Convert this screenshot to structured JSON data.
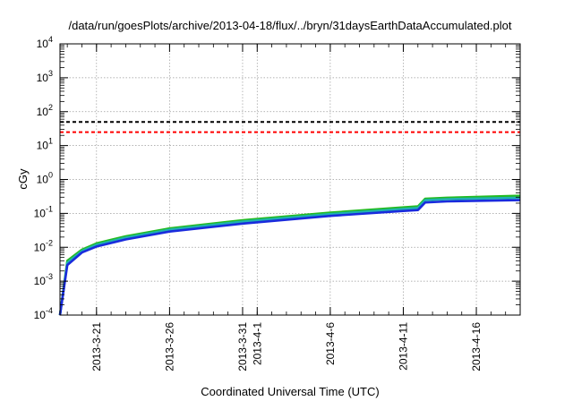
{
  "chart_data": {
    "type": "line",
    "title": "/data/run/goesPlots/archive/2013-04-18/flux/../bryn/31daysEarthDataAccumulated.plot",
    "xlabel": "Coordinated Universal Time (UTC)",
    "ylabel": "cGy",
    "yscale": "log",
    "ylim": [
      0.0001,
      10000
    ],
    "xlim": [
      "2013-03-18 12:00",
      "2013-04-19"
    ],
    "y_ticks": [
      {
        "base": "10",
        "exp": "-4",
        "value": 0.0001
      },
      {
        "base": "10",
        "exp": "-3",
        "value": 0.001
      },
      {
        "base": "10",
        "exp": "-2",
        "value": 0.01
      },
      {
        "base": "10",
        "exp": "-1",
        "value": 0.1
      },
      {
        "base": "10",
        "exp": "0",
        "value": 1
      },
      {
        "base": "10",
        "exp": "1",
        "value": 10
      },
      {
        "base": "10",
        "exp": "2",
        "value": 100
      },
      {
        "base": "10",
        "exp": "3",
        "value": 1000
      },
      {
        "base": "10",
        "exp": "4",
        "value": 10000
      }
    ],
    "x_ticks": [
      {
        "date": "2013-03-21",
        "labels": [
          "2013-3-21"
        ]
      },
      {
        "date": "2013-03-26",
        "labels": [
          "2013-3-26"
        ]
      },
      {
        "date": "2013-03-31",
        "labels": [
          "2013-3-31"
        ]
      },
      {
        "date": "2013-04-01",
        "labels": [
          "2013-4-1"
        ]
      },
      {
        "date": "2013-04-06",
        "labels": [
          "2013-4-6"
        ]
      },
      {
        "date": "2013-04-11",
        "labels": [
          "2013-4-11"
        ]
      },
      {
        "date": "2013-04-16",
        "labels": [
          "2013-4-16"
        ]
      }
    ],
    "grid": true,
    "series": [
      {
        "color": "#000000",
        "style": "dashed",
        "x": [
          "2013-03-18 12:00",
          "2013-04-19"
        ],
        "y": [
          50,
          50
        ]
      },
      {
        "color": "#ff0000",
        "style": "dashed",
        "x": [
          "2013-03-18 12:00",
          "2013-04-19"
        ],
        "y": [
          25,
          25
        ]
      },
      {
        "color": "#22bb22",
        "style": "solid",
        "x": [
          "2013-03-18 12:00",
          "2013-03-19",
          "2013-03-20",
          "2013-03-21",
          "2013-03-23",
          "2013-03-26",
          "2013-03-31",
          "2013-04-06",
          "2013-04-11",
          "2013-04-12",
          "2013-04-12 12:00",
          "2013-04-14",
          "2013-04-19"
        ],
        "y": [
          0.0001,
          0.004,
          0.0085,
          0.013,
          0.021,
          0.036,
          0.063,
          0.105,
          0.15,
          0.16,
          0.27,
          0.29,
          0.33
        ]
      },
      {
        "color": "#1fb0b0",
        "style": "solid",
        "x": [
          "2013-03-18 12:00",
          "2013-03-19",
          "2013-03-20",
          "2013-03-21",
          "2013-03-23",
          "2013-03-26",
          "2013-03-31",
          "2013-04-06",
          "2013-04-11",
          "2013-04-12",
          "2013-04-12 12:00",
          "2013-04-14",
          "2013-04-19"
        ],
        "y": [
          0.0001,
          0.0035,
          0.0077,
          0.0118,
          0.0192,
          0.033,
          0.057,
          0.095,
          0.135,
          0.145,
          0.245,
          0.262,
          0.29
        ]
      },
      {
        "color": "#1a2bdd",
        "style": "solid",
        "x": [
          "2013-03-18 12:00",
          "2013-03-19",
          "2013-03-20",
          "2013-03-21",
          "2013-03-23",
          "2013-03-26",
          "2013-03-31",
          "2013-04-06",
          "2013-04-11",
          "2013-04-12",
          "2013-04-12 12:00",
          "2013-04-14",
          "2013-04-19"
        ],
        "y": [
          0.0001,
          0.003,
          0.007,
          0.0105,
          0.017,
          0.029,
          0.05,
          0.084,
          0.118,
          0.125,
          0.21,
          0.225,
          0.245
        ]
      }
    ]
  }
}
